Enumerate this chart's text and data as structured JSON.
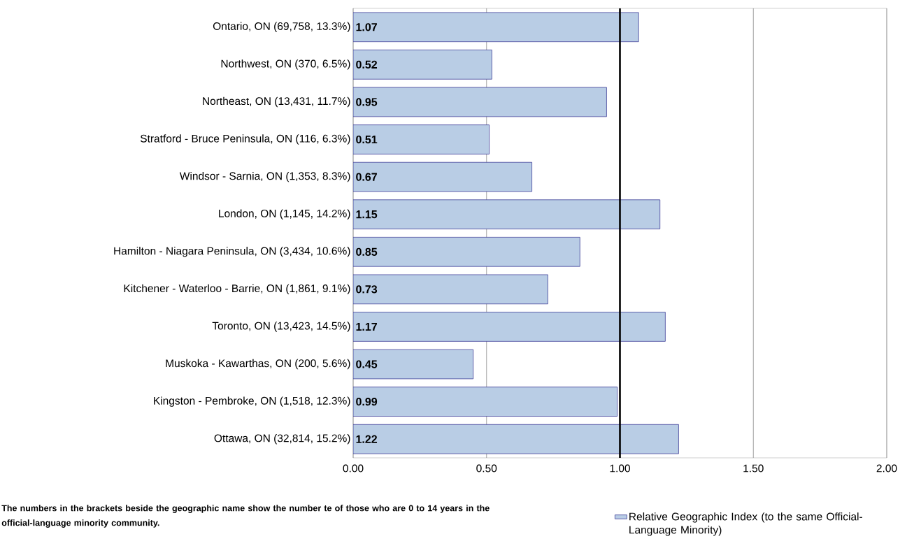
{
  "chart_data": {
    "type": "bar",
    "orientation": "horizontal",
    "categories": [
      "Ontario, ON (69,758, 13.3%)",
      "Northwest, ON (370, 6.5%)",
      "Northeast, ON (13,431, 11.7%)",
      "Stratford - Bruce Peninsula, ON (116, 6.3%)",
      "Windsor - Sarnia, ON (1,353, 8.3%)",
      "London, ON (1,145, 14.2%)",
      "Hamilton - Niagara Peninsula, ON (3,434, 10.6%)",
      "Kitchener - Waterloo - Barrie, ON (1,861, 9.1%)",
      "Toronto, ON (13,423, 14.5%)",
      "Muskoka - Kawarthas, ON (200, 5.6%)",
      "Kingston - Pembroke, ON (1,518, 12.3%)",
      "Ottawa, ON (32,814, 15.2%)"
    ],
    "series": [
      {
        "name": "Relative Geographic Index (to the same Official-Language Minority)",
        "color": "#b9cde5",
        "values": [
          1.07,
          0.52,
          0.95,
          0.51,
          0.67,
          1.15,
          0.85,
          0.73,
          1.17,
          0.45,
          0.99,
          1.22
        ]
      }
    ],
    "data_labels": true,
    "xlim": [
      0,
      2
    ],
    "xticks": [
      {
        "value": 0,
        "label": "0.00"
      },
      {
        "value": 0.5,
        "label": "0.50"
      },
      {
        "value": 1,
        "label": "1.00"
      },
      {
        "value": 1.5,
        "label": "1.50"
      },
      {
        "value": 2,
        "label": "2.00"
      }
    ],
    "grid": "x",
    "legend": "bottom right",
    "ref_lines": [
      {
        "axis": "x",
        "value": 1,
        "color": "#000000"
      }
    ],
    "annotations": [
      "The numbers in the brackets beside the geographic name show the number te of those who are 0 to 14 years in the official-language minority community."
    ]
  }
}
